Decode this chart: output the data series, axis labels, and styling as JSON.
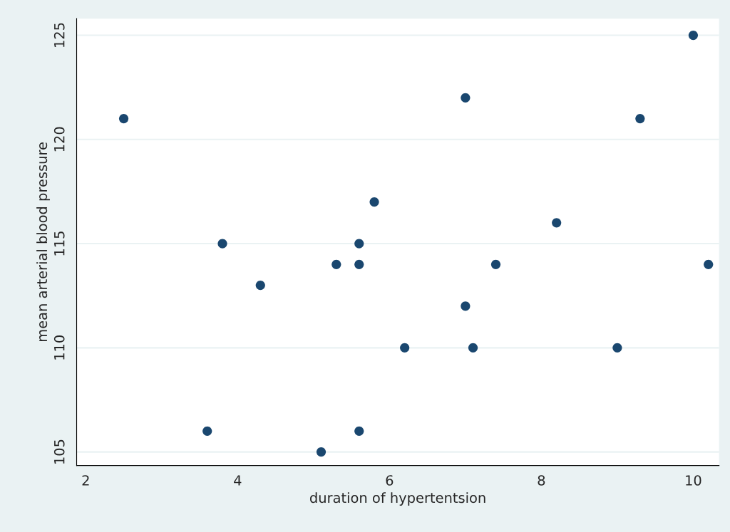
{
  "chart_data": {
    "type": "scatter",
    "xlabel": "duration of hypertentsion",
    "ylabel": "mean arterial blood pressure",
    "x": [
      2.5,
      3.6,
      3.8,
      4.3,
      5.1,
      5.3,
      5.6,
      5.6,
      5.6,
      5.8,
      6.2,
      7,
      7,
      7.1,
      7.4,
      8.2,
      9,
      9.3,
      10,
      10.2
    ],
    "series": [
      {
        "color": "#1a476f",
        "values": [
          121,
          106,
          115,
          113,
          105,
          114,
          115,
          114,
          106,
          117,
          110,
          122,
          112,
          110,
          114,
          116,
          110,
          121,
          125,
          114
        ]
      }
    ],
    "xlim": [
      1.88,
      10.34
    ],
    "ylim": [
      104.35,
      125.8
    ],
    "xticks": [
      2,
      4,
      6,
      8,
      10
    ],
    "yticks": [
      105,
      110,
      115,
      120,
      125
    ],
    "grid": "y",
    "marker": "circle",
    "legend": false
  }
}
